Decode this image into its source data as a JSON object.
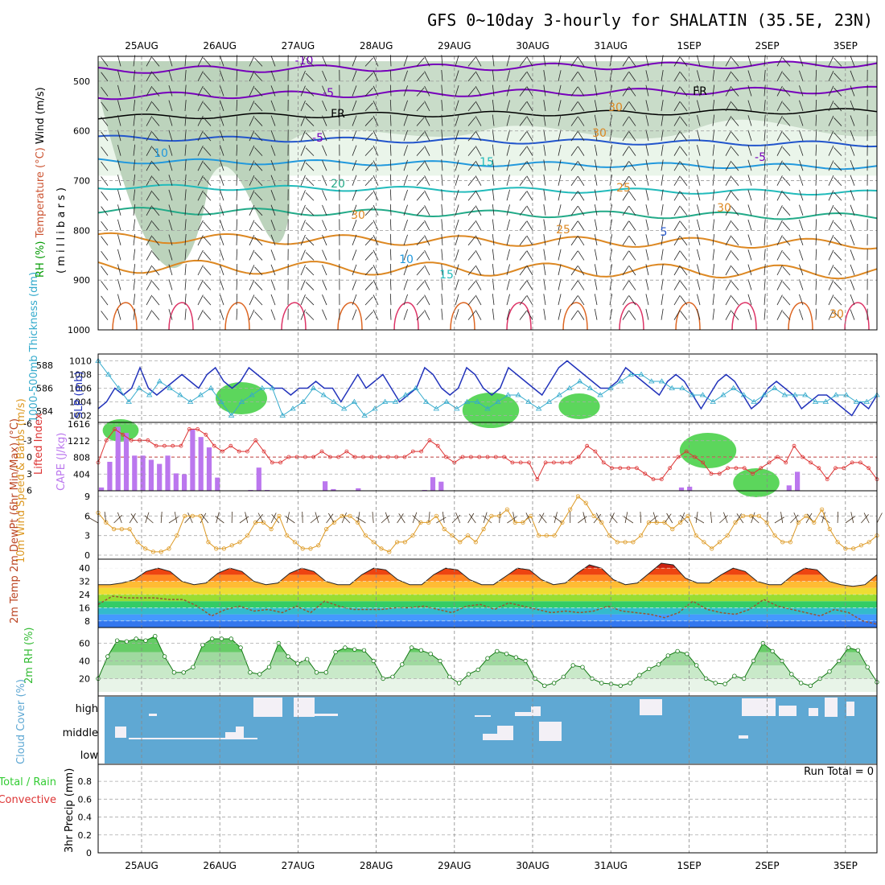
{
  "title": "GFS 0~10day 3-hourly for SHALATIN (35.5E, 23N)",
  "dates": [
    "25AUG",
    "26AUG",
    "27AUG",
    "28AUG",
    "29AUG",
    "30AUG",
    "31AUG",
    "1SEP",
    "2SEP",
    "3SEP"
  ],
  "colors": {
    "rh": "#33cc33",
    "temp_cold": "#7700bb",
    "temp_mid": "#2255cc",
    "temp_warm": "#dd8822",
    "slp": "#2233bb",
    "thk": "#33aacc",
    "li": "#dd3333",
    "cape": "#bb77ee",
    "wind": "#dd9922",
    "cloud": "#5fa8d3",
    "rh2m": "#33bb33"
  },
  "chart_data": [
    {
      "type": "heatmap",
      "panel": "upper-air",
      "ylabel_parts": [
        "RH (%)",
        "Temperature (°C)",
        "Wind (m/s)"
      ],
      "ylabel_units": "( m i l l i b a r s )",
      "yticks": [
        500,
        600,
        700,
        800,
        900,
        1000
      ],
      "ylim": [
        1000,
        450
      ],
      "contour_labels": [
        "-10",
        "-5",
        "FR",
        "-5",
        "10",
        "15",
        "20",
        "25",
        "30",
        "5",
        "10",
        "15",
        "25",
        "30",
        "30",
        "30",
        "FR",
        "-5",
        "30"
      ],
      "isotherms": [
        {
          "name": "-10",
          "values": [
            -10
          ]
        },
        {
          "name": "-5"
        },
        {
          "name": "FR"
        },
        {
          "name": "5"
        },
        {
          "name": "10"
        },
        {
          "name": "15"
        },
        {
          "name": "20"
        },
        {
          "name": "25"
        },
        {
          "name": "30"
        }
      ]
    },
    {
      "type": "line",
      "panel": "slp-thickness",
      "ylabel_left": "1000-500mb Thickness (dm)",
      "ylabel_right": "SLP (mb)",
      "yticks_left": [
        584,
        586,
        588
      ],
      "yticks_right": [
        1002,
        1004,
        1006,
        1008,
        1010
      ],
      "ylim_right": [
        1001,
        1011
      ],
      "series": [
        {
          "name": "SLP (mb)",
          "values": [
            1003,
            1004,
            1006,
            1005,
            1006,
            1009,
            1006,
            1005,
            1006,
            1007,
            1008,
            1007,
            1006,
            1008,
            1009,
            1007,
            1006,
            1007,
            1009,
            1008,
            1007,
            1006,
            1006,
            1005,
            1006,
            1006,
            1007,
            1006,
            1006,
            1004,
            1006,
            1008,
            1006,
            1007,
            1008,
            1006,
            1004,
            1005,
            1006,
            1009,
            1008,
            1006,
            1005,
            1006,
            1009,
            1008,
            1006,
            1005,
            1006,
            1009,
            1008,
            1007,
            1006,
            1005,
            1007,
            1009,
            1010,
            1009,
            1008,
            1007,
            1006,
            1006,
            1007,
            1009,
            1008,
            1007,
            1006,
            1005,
            1007,
            1008,
            1007,
            1005,
            1003,
            1005,
            1007,
            1008,
            1007,
            1005,
            1003,
            1004,
            1006,
            1007,
            1006,
            1005,
            1003,
            1004,
            1005,
            1005,
            1004,
            1003,
            1002,
            1004,
            1003,
            1005
          ]
        },
        {
          "name": "1000-500mb Thickness (dm)",
          "values": [
            1010,
            1008,
            1006,
            1004,
            1006,
            1005,
            1007,
            1006,
            1005,
            1004,
            1005,
            1006,
            1004,
            1002,
            1004,
            1005,
            1006,
            1006,
            1002,
            1003,
            1004,
            1006,
            1005,
            1004,
            1003,
            1004,
            1002,
            1003,
            1004,
            1004,
            1005,
            1006,
            1004,
            1003,
            1004,
            1003,
            1004,
            1004,
            1003,
            1004,
            1005,
            1005,
            1004,
            1003,
            1004,
            1005,
            1006,
            1007,
            1006,
            1005,
            1006,
            1007,
            1008,
            1008,
            1007,
            1007,
            1006,
            1006,
            1005,
            1005,
            1004,
            1005,
            1006,
            1005,
            1004,
            1005,
            1006,
            1005,
            1005,
            1005,
            1004,
            1004,
            1005,
            1005,
            1004,
            1004,
            1005
          ]
        }
      ]
    },
    {
      "type": "bar",
      "panel": "stability",
      "ylabel_left": "Lifted Index",
      "ylabel_right": "CAPE (J/kg)",
      "yticks_left": [
        -6,
        -3,
        0,
        3,
        6
      ],
      "yticks_right": [
        404,
        808,
        1212,
        1616
      ],
      "ylim_right": [
        0,
        1616
      ],
      "series": [
        {
          "name": "CAPE (J/kg)",
          "values": [
            80,
            700,
            1550,
            1400,
            850,
            850,
            750,
            650,
            850,
            420,
            400,
            1500,
            1300,
            1050,
            320,
            0,
            0,
            10,
            20,
            560,
            20,
            0,
            0,
            0,
            0,
            0,
            0,
            230,
            40,
            0,
            0,
            60,
            0,
            0,
            0,
            0,
            0,
            0,
            0,
            20,
            330,
            220,
            0,
            0,
            0,
            0,
            0,
            0,
            0,
            0,
            0,
            0,
            0,
            0,
            0,
            0,
            0,
            0,
            0,
            0,
            0,
            0,
            0,
            0,
            0,
            0,
            0,
            0,
            0,
            0,
            80,
            100,
            0,
            0,
            0,
            0,
            0,
            0,
            0,
            0,
            0,
            0,
            0,
            130,
            460,
            0,
            0,
            0,
            0,
            0,
            0,
            0,
            0,
            0
          ]
        },
        {
          "name": "Lifted Index",
          "values": [
            1,
            -3,
            -5,
            -4,
            -3,
            -3,
            -3,
            -2,
            -2,
            -2,
            -2,
            -5,
            -5,
            -4,
            -2,
            -1,
            -2,
            -1,
            -1,
            -3,
            -1,
            1,
            1,
            0,
            0,
            0,
            0,
            -1,
            0,
            0,
            -1,
            0,
            0,
            0,
            0,
            0,
            0,
            0,
            -1,
            -1,
            -3,
            -2,
            0,
            1,
            0,
            0,
            0,
            0,
            0,
            0,
            1,
            1,
            1,
            4,
            1,
            1,
            1,
            1,
            0,
            -2,
            -1,
            1,
            2,
            2,
            2,
            2,
            3,
            4,
            4,
            2,
            0,
            -1,
            0,
            1,
            3,
            3,
            2,
            2,
            2,
            3,
            2,
            1,
            0,
            1,
            -2,
            0,
            1,
            2,
            4,
            2,
            2,
            1,
            1,
            2,
            4
          ]
        }
      ]
    },
    {
      "type": "line",
      "panel": "wind10m",
      "ylabel": "10m Wind Speed & Barbs (m/s)",
      "yticks": [
        0,
        3,
        6,
        9
      ],
      "ylim": [
        0,
        9
      ],
      "series": [
        {
          "name": "10m Wind Speed",
          "values": [
            6.5,
            5,
            4,
            4,
            4,
            2,
            1,
            0.5,
            0.5,
            1,
            3,
            6,
            6,
            6,
            2,
            1,
            1,
            1.5,
            2,
            3,
            5,
            5,
            4,
            6,
            3,
            2,
            1,
            1,
            1.5,
            4,
            5,
            6,
            6,
            5,
            3,
            2,
            1,
            0.5,
            2,
            2,
            3,
            5,
            5,
            6,
            4,
            3,
            2,
            3,
            2,
            4,
            6,
            6,
            7,
            5,
            5,
            6,
            3,
            3,
            3,
            5,
            7,
            9,
            8,
            6,
            5,
            3,
            2,
            2,
            2,
            3,
            5,
            5,
            5,
            4,
            5,
            6,
            3,
            2,
            1,
            2,
            3,
            5,
            6,
            6,
            6,
            5,
            3,
            2,
            2,
            5,
            6,
            5,
            7,
            4,
            2,
            1,
            1,
            1.5,
            2,
            3
          ]
        }
      ]
    },
    {
      "type": "area",
      "panel": "temp2m",
      "ylabel": "2m Temp 2m DewPt (6hr Min/Max) (°C)",
      "yticks": [
        8,
        16,
        24,
        32,
        40
      ],
      "ylim": [
        4,
        44
      ],
      "series": [
        {
          "name": "2m Temp",
          "values": [
            30,
            30,
            31,
            33,
            38,
            40,
            38,
            32,
            30,
            31,
            37,
            40,
            38,
            32,
            30,
            31,
            37,
            40,
            38,
            32,
            30,
            30,
            36,
            40,
            39,
            33,
            30,
            30,
            36,
            40,
            39,
            33,
            30,
            30,
            35,
            40,
            39,
            33,
            30,
            31,
            37,
            42,
            40,
            33,
            30,
            31,
            37,
            43,
            42,
            34,
            31,
            31,
            36,
            40,
            38,
            32,
            30,
            30,
            36,
            40,
            39,
            32,
            30,
            29,
            30,
            36
          ]
        },
        {
          "name": "2m DewPt",
          "values": [
            18,
            23,
            22,
            22,
            22,
            21,
            21,
            17,
            11,
            15,
            17,
            14,
            15,
            13,
            17,
            13,
            20,
            17,
            15,
            15,
            15,
            16,
            16,
            17,
            15,
            13,
            17,
            18,
            15,
            19,
            17,
            15,
            13,
            14,
            13,
            14,
            17,
            14,
            13,
            12,
            10,
            13,
            20,
            15,
            13,
            12,
            15,
            21,
            17,
            15,
            13,
            11,
            15,
            13,
            8,
            6
          ]
        }
      ]
    },
    {
      "type": "area",
      "panel": "rh2m",
      "ylabel": "2m RH (%)",
      "yticks": [
        20,
        40,
        60
      ],
      "ylim": [
        5,
        75
      ],
      "series": [
        {
          "name": "2m RH",
          "values": [
            20,
            45,
            63,
            62,
            65,
            63,
            68,
            45,
            27,
            27,
            33,
            58,
            65,
            65,
            65,
            55,
            27,
            25,
            33,
            60,
            45,
            37,
            42,
            27,
            27,
            50,
            55,
            53,
            52,
            40,
            20,
            22,
            36,
            55,
            52,
            48,
            40,
            22,
            15,
            25,
            30,
            43,
            51,
            48,
            44,
            40,
            20,
            12,
            15,
            22,
            35,
            33,
            20,
            15,
            14,
            12,
            15,
            24,
            31,
            36,
            46,
            51,
            48,
            35,
            20,
            15,
            14,
            23,
            20,
            40,
            60,
            51,
            40,
            25,
            15,
            12,
            20,
            28,
            40,
            55,
            52,
            33,
            16
          ]
        }
      ]
    },
    {
      "type": "heatmap",
      "panel": "cloud",
      "ylabel": "Cloud Cover (%)",
      "yticks": [
        "high",
        "middle",
        "low"
      ]
    },
    {
      "type": "bar",
      "panel": "precip",
      "ylabel": "3hr Precip (mm)",
      "ylabel_left": "Total / Rain",
      "ylabel_left2": "Convective",
      "yticks": [
        0,
        0.2,
        0.4,
        0.6,
        0.8
      ],
      "ylim": [
        0,
        0.9
      ],
      "run_total": "Run Total = 0",
      "values": []
    }
  ]
}
